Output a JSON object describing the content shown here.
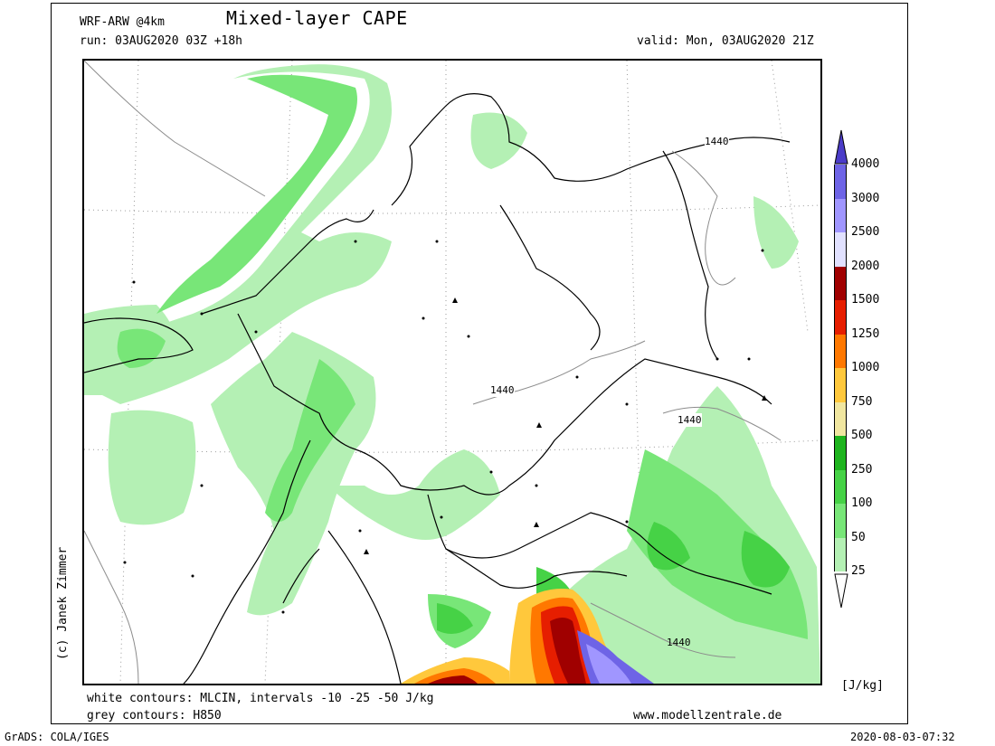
{
  "header": {
    "model": "WRF-ARW @4km",
    "title": "Mixed-layer CAPE",
    "run": "run: 03AUG2020 03Z +18h",
    "valid": "valid: Mon, 03AUG2020 21Z"
  },
  "footer": {
    "white_contours": "white contours: MLCIN, intervals -10 -25 -50 J/kg",
    "grey_contours": "grey contours: H850",
    "website": "www.modellzentrale.de",
    "grads": "GrADS: COLA/IGES",
    "timestamp": "2020-08-03-07:32"
  },
  "credit": "(c) Janek Zimmer",
  "map": {
    "contour_labels": [
      "1440",
      "1440",
      "1440",
      "1440"
    ]
  },
  "legend": {
    "unit": "[J/kg]",
    "levels": [
      "25",
      "50",
      "100",
      "250",
      "500",
      "750",
      "1000",
      "1250",
      "1500",
      "2000",
      "2500",
      "3000",
      "4000"
    ],
    "colors": [
      "#e1ffe1",
      "#b4f0b4",
      "#78e678",
      "#46d246",
      "#1eb41e",
      "#f0e6a0",
      "#ffc83c",
      "#ff7800",
      "#e61e00",
      "#a00000",
      "#e1e1ff",
      "#a096ff",
      "#6e64e6",
      "#4b3cc8"
    ]
  }
}
